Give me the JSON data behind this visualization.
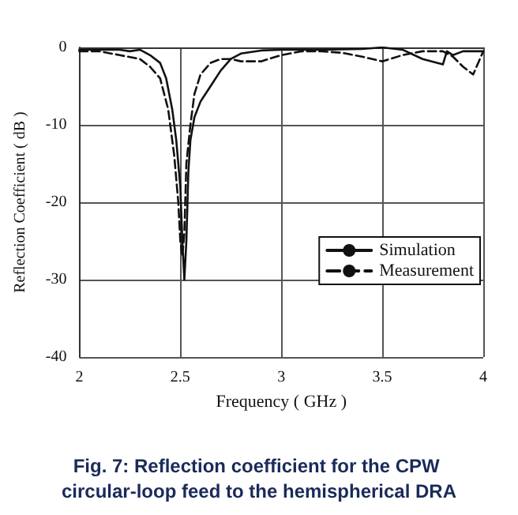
{
  "chart_data": {
    "type": "line",
    "title": "Fig. 7: Reflection coefficient for the CPW circular-loop feed to the hemispherical DRA",
    "xlabel": "Frequency ( GHz )",
    "ylabel": "Reflection Coefficient ( dB )",
    "xlim": [
      2,
      4
    ],
    "xticks": [
      2,
      2.5,
      3,
      3.5,
      4
    ],
    "ylim": [
      -40,
      0
    ],
    "yticks": [
      -40,
      -30,
      -20,
      -10,
      0
    ],
    "grid": true,
    "legend": "right",
    "marker": "none",
    "series": [
      {
        "name": "Simulation",
        "color": "#111111",
        "line_style": "solid",
        "x": [
          2,
          2.1,
          2.2,
          2.25,
          2.3,
          2.35,
          2.4,
          2.43,
          2.46,
          2.48,
          2.5,
          2.51,
          2.52,
          2.53,
          2.54,
          2.55,
          2.57,
          2.6,
          2.65,
          2.7,
          2.75,
          2.8,
          2.9,
          3,
          3.2,
          3.4,
          3.5,
          3.6,
          3.7,
          3.8,
          3.82,
          3.85,
          3.9,
          4
        ],
        "values": [
          -0.3,
          -0.3,
          -0.3,
          -0.5,
          -0.3,
          -1,
          -2,
          -4,
          -8,
          -12,
          -18,
          -25,
          -30,
          -25,
          -16,
          -12,
          -9,
          -7,
          -5,
          -3,
          -1.5,
          -0.8,
          -0.4,
          -0.3,
          -0.3,
          -0.2,
          0,
          -0.3,
          -1.5,
          -2.2,
          -0.5,
          -1,
          -0.5,
          -0.5
        ]
      },
      {
        "name": "Measurement",
        "color": "#111111",
        "line_style": "dashed",
        "x": [
          2,
          2.1,
          2.2,
          2.3,
          2.35,
          2.4,
          2.44,
          2.47,
          2.49,
          2.5,
          2.51,
          2.52,
          2.53,
          2.55,
          2.57,
          2.6,
          2.65,
          2.7,
          2.75,
          2.8,
          2.9,
          3,
          3.1,
          3.2,
          3.3,
          3.4,
          3.5,
          3.6,
          3.7,
          3.8,
          3.85,
          3.9,
          3.95,
          4
        ],
        "values": [
          -0.5,
          -0.5,
          -1,
          -1.5,
          -2.5,
          -4,
          -8,
          -14,
          -20,
          -25,
          -27,
          -24,
          -15,
          -10,
          -6,
          -3.5,
          -2,
          -1.5,
          -1.5,
          -1.8,
          -1.8,
          -1,
          -0.5,
          -0.5,
          -0.7,
          -1.2,
          -1.8,
          -1,
          -0.5,
          -0.5,
          -1.2,
          -2.5,
          -3.5,
          -0.5
        ]
      }
    ]
  }
}
